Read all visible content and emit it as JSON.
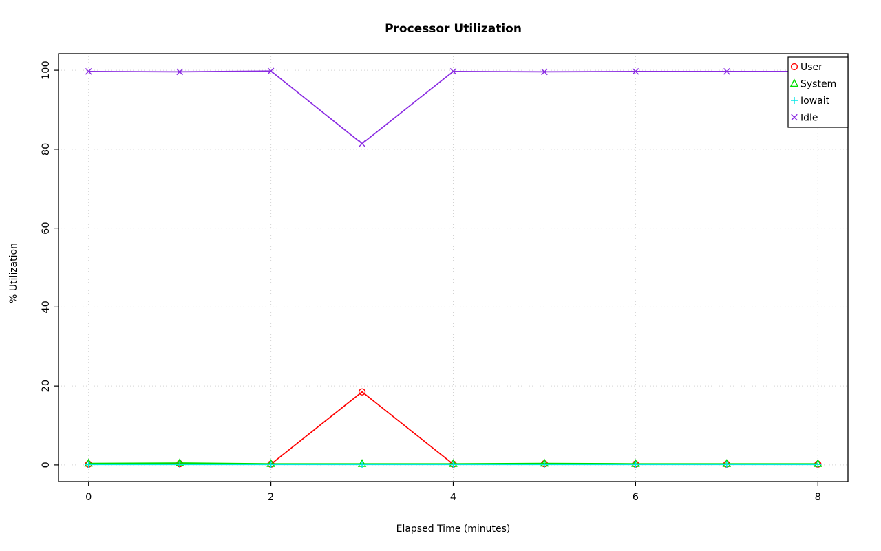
{
  "page": {
    "background": "#ffffff"
  },
  "chart_data": {
    "type": "line",
    "title": "Processor Utilization",
    "xlabel": "Elapsed Time (minutes)",
    "ylabel": "% Utilization",
    "x": [
      0,
      1,
      2,
      3,
      4,
      5,
      6,
      7,
      8
    ],
    "xticks": [
      0,
      2,
      4,
      6,
      8
    ],
    "yticks": [
      0,
      20,
      40,
      60,
      80,
      100
    ],
    "xlim": [
      -0.33,
      8.33
    ],
    "ylim": [
      -4.2,
      104.2
    ],
    "grid": true,
    "grid_color": "#d3d3d3",
    "axis_color": "#000000",
    "legend_position": "top-right",
    "series": [
      {
        "name": "User",
        "color": "#FF0000",
        "marker": "circle",
        "values": [
          0.2,
          0.3,
          0.2,
          18.5,
          0.2,
          0.3,
          0.2,
          0.2,
          0.2
        ]
      },
      {
        "name": "System",
        "color": "#00DD00",
        "marker": "triangle",
        "values": [
          0.4,
          0.5,
          0.3,
          0.3,
          0.3,
          0.4,
          0.3,
          0.3,
          0.3
        ]
      },
      {
        "name": "Iowait",
        "color": "#00E5E5",
        "marker": "plus",
        "values": [
          0.1,
          0.1,
          0.1,
          0.1,
          0.1,
          0.1,
          0.1,
          0.1,
          0.1
        ]
      },
      {
        "name": "Idle",
        "color": "#8A2BE2",
        "marker": "x",
        "values": [
          99.7,
          99.6,
          99.8,
          81.4,
          99.7,
          99.6,
          99.7,
          99.7,
          99.7
        ]
      }
    ]
  }
}
